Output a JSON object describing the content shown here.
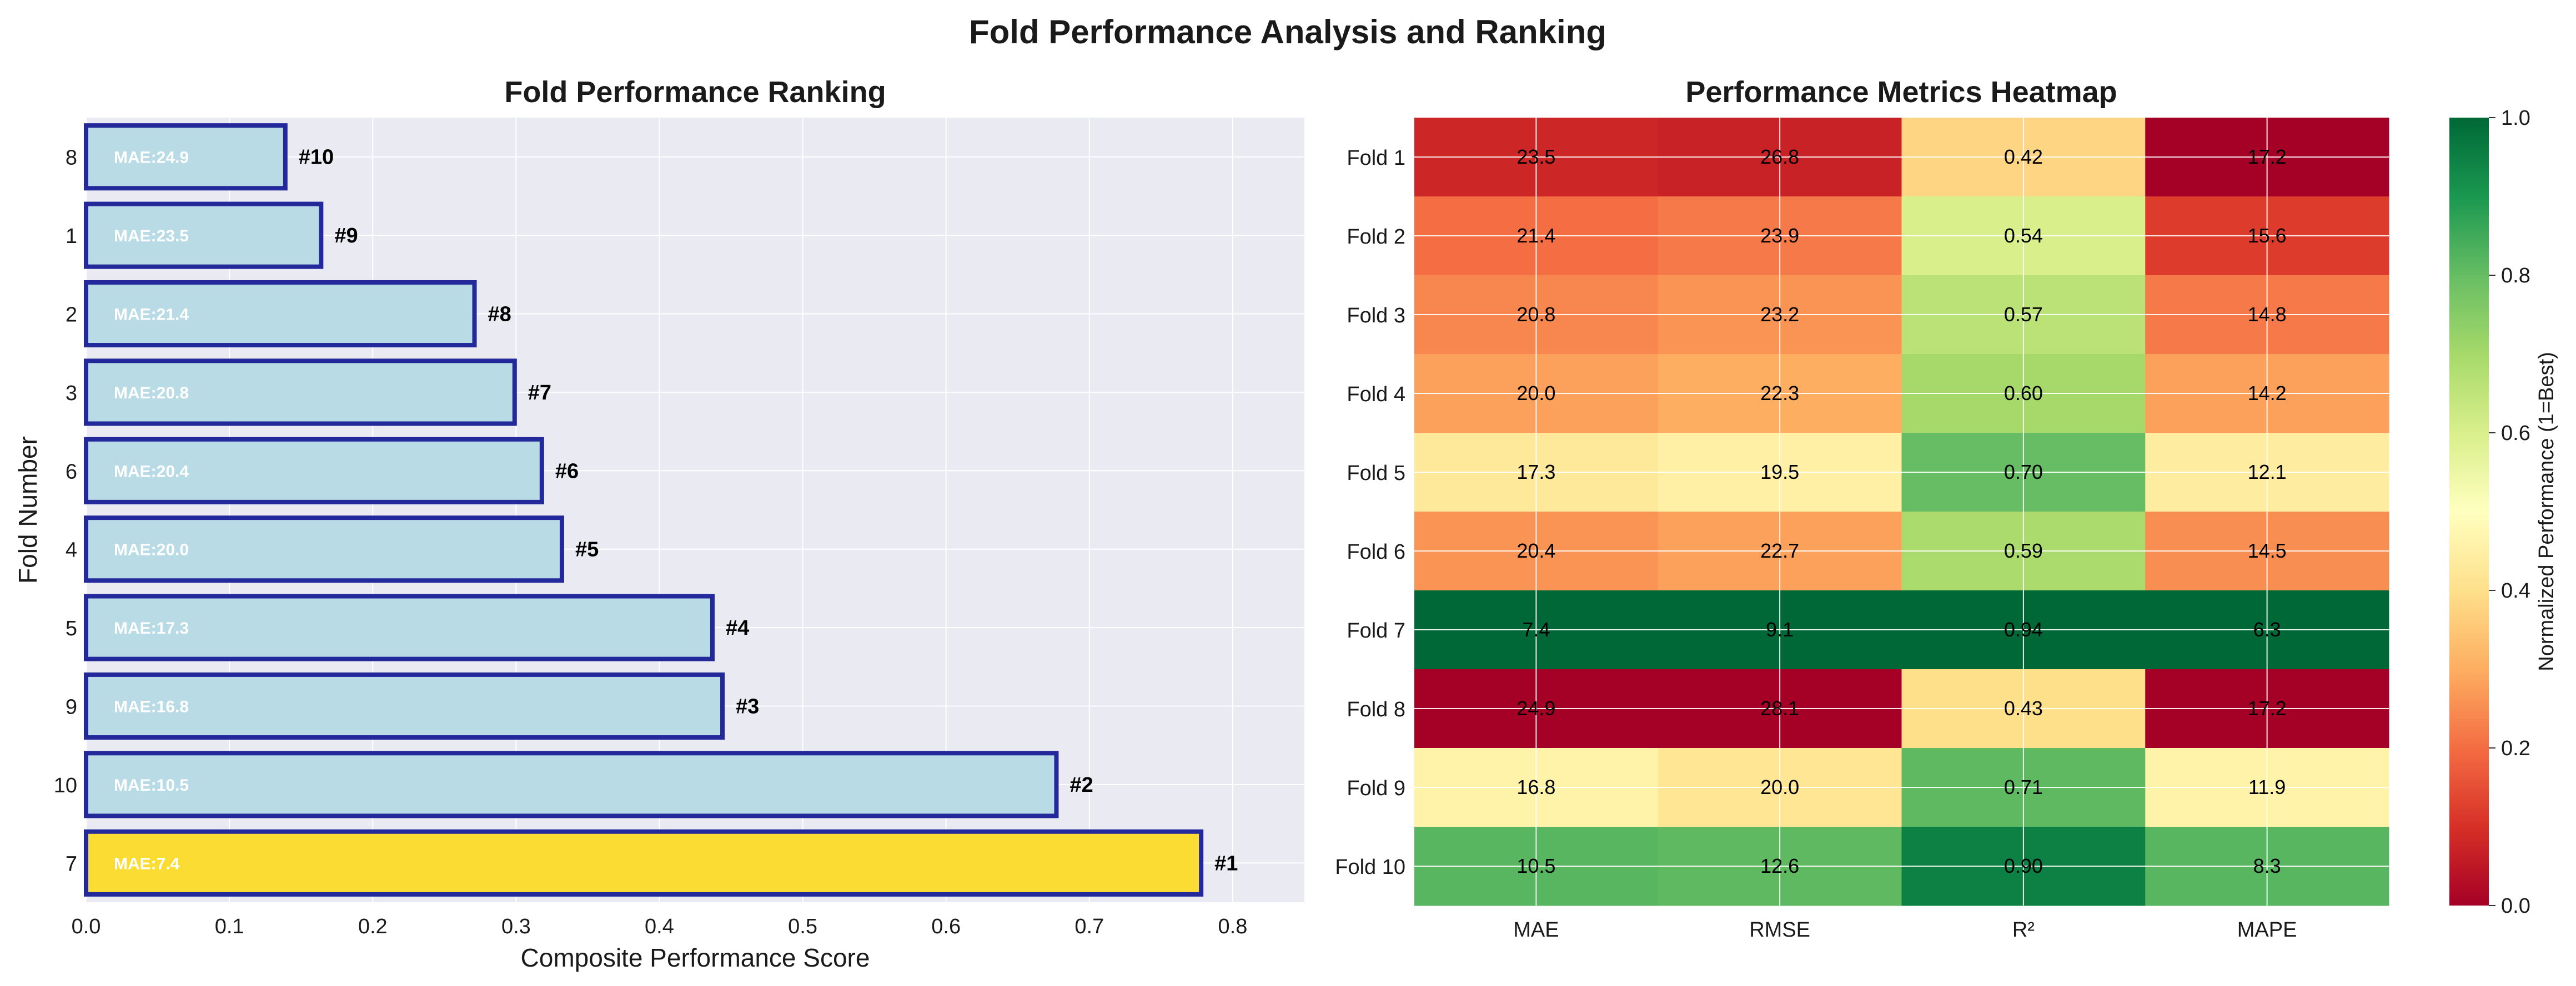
{
  "figure": {
    "title": "Fold Performance Analysis and Ranking"
  },
  "chart_data": [
    {
      "type": "bar",
      "orientation": "horizontal",
      "title": "Fold Performance Ranking",
      "xlabel": "Composite Performance Score",
      "ylabel": "Fold Number",
      "xlim": [
        0,
        0.85
      ],
      "xticks": [
        0.0,
        0.1,
        0.2,
        0.3,
        0.4,
        0.5,
        0.6,
        0.7,
        0.8
      ],
      "grid": true,
      "categories": [
        "7",
        "10",
        "9",
        "5",
        "4",
        "6",
        "3",
        "2",
        "1",
        "8"
      ],
      "values": [
        0.778,
        0.677,
        0.444,
        0.437,
        0.332,
        0.318,
        0.299,
        0.271,
        0.164,
        0.139
      ],
      "bar_labels": [
        "MAE:7.4",
        "MAE:10.5",
        "MAE:16.8",
        "MAE:17.3",
        "MAE:20.0",
        "MAE:20.4",
        "MAE:20.8",
        "MAE:21.4",
        "MAE:23.5",
        "MAE:24.9"
      ],
      "rank_labels": [
        "#1",
        "#2",
        "#3",
        "#4",
        "#5",
        "#6",
        "#7",
        "#8",
        "#9",
        "#10"
      ],
      "colors": {
        "best": "#fbdc33",
        "default": "#b9dbe6",
        "edge": "#23289a"
      }
    },
    {
      "type": "heatmap",
      "title": "Performance Metrics Heatmap",
      "rows": [
        "Fold 1",
        "Fold 2",
        "Fold 3",
        "Fold 4",
        "Fold 5",
        "Fold 6",
        "Fold 7",
        "Fold 8",
        "Fold 9",
        "Fold 10"
      ],
      "columns": [
        "MAE",
        "RMSE",
        "R²",
        "MAPE"
      ],
      "cell_labels": [
        [
          "23.5",
          "26.8",
          "0.42",
          "17.2"
        ],
        [
          "21.4",
          "23.9",
          "0.54",
          "15.6"
        ],
        [
          "20.8",
          "23.2",
          "0.57",
          "14.8"
        ],
        [
          "20.0",
          "22.3",
          "0.60",
          "14.2"
        ],
        [
          "17.3",
          "19.5",
          "0.70",
          "12.1"
        ],
        [
          "20.4",
          "22.7",
          "0.59",
          "14.5"
        ],
        [
          "7.4",
          "9.1",
          "0.94",
          "6.3"
        ],
        [
          "24.9",
          "28.1",
          "0.43",
          "17.2"
        ],
        [
          "16.8",
          "20.0",
          "0.71",
          "11.9"
        ],
        [
          "10.5",
          "12.6",
          "0.90",
          "8.3"
        ]
      ],
      "normalized": [
        [
          0.08,
          0.07,
          0.38,
          0.0
        ],
        [
          0.2,
          0.22,
          0.6,
          0.12
        ],
        [
          0.24,
          0.26,
          0.66,
          0.22
        ],
        [
          0.28,
          0.3,
          0.7,
          0.28
        ],
        [
          0.43,
          0.45,
          0.8,
          0.44
        ],
        [
          0.26,
          0.28,
          0.69,
          0.25
        ],
        [
          1.0,
          1.0,
          1.0,
          1.0
        ],
        [
          0.0,
          0.0,
          0.4,
          0.0
        ],
        [
          0.46,
          0.42,
          0.81,
          0.46
        ],
        [
          0.82,
          0.81,
          0.95,
          0.82
        ]
      ],
      "colorbar": {
        "label": "Normalized Performance (1=Best)",
        "ticks": [
          "0.0",
          "0.2",
          "0.4",
          "0.6",
          "0.8",
          "1.0"
        ],
        "colormap": "RdYlGn",
        "range": [
          0,
          1
        ]
      }
    }
  ]
}
